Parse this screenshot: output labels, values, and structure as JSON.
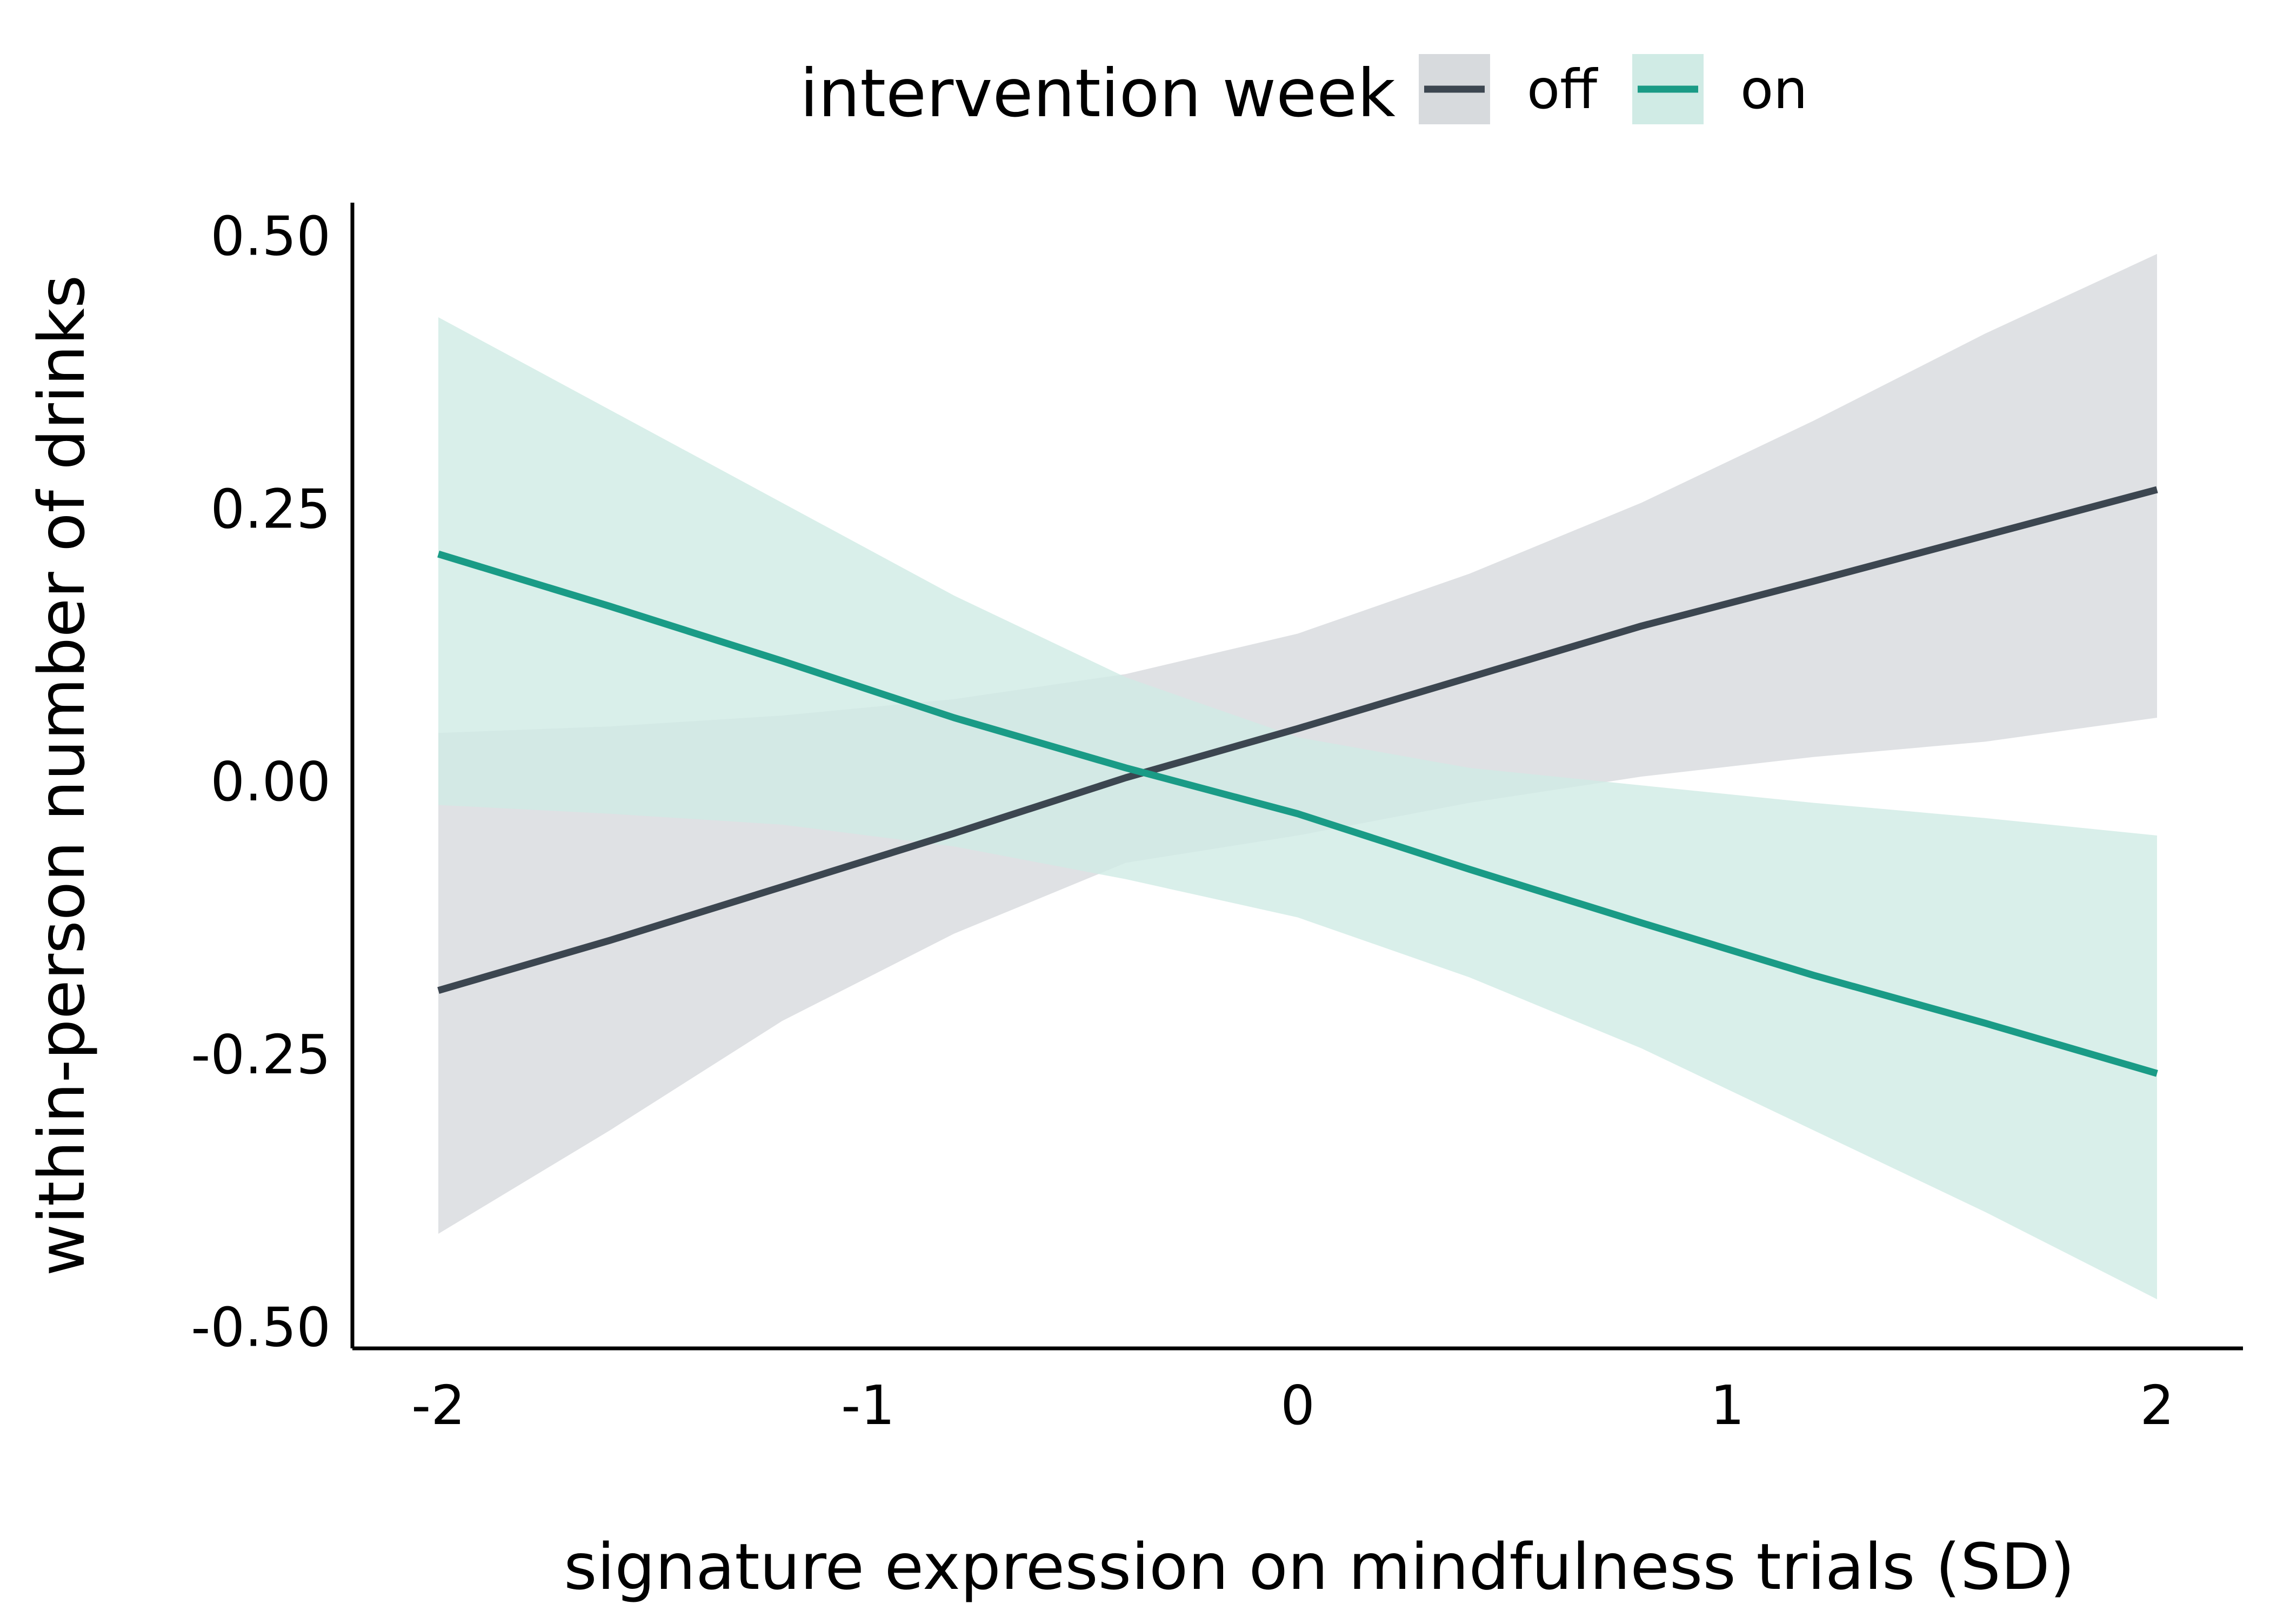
{
  "chart_data": {
    "type": "line",
    "xlabel": "signature expression on mindfulness trials (SD)",
    "ylabel": "within-person number of drinks",
    "xlim": [
      -2.2,
      2.2
    ],
    "ylim": [
      -0.52,
      0.53
    ],
    "x_ticks": [
      -2,
      -1,
      0,
      1,
      2
    ],
    "x_tick_labels": [
      "-2",
      "-1",
      "0",
      "1",
      "2"
    ],
    "y_ticks": [
      -0.5,
      -0.25,
      0,
      0.25,
      0.5
    ],
    "y_tick_labels": [
      "-0.50",
      "-0.25",
      "0.00",
      "0.25",
      "0.50"
    ],
    "grid": false,
    "legend": {
      "title": "intervention week",
      "position": "top"
    },
    "series": [
      {
        "name": "off",
        "color": "#3c4650",
        "band_color": "#d7dadd",
        "x": [
          -2,
          -1.6,
          -1.2,
          -0.8,
          -0.4,
          0,
          0.4,
          0.8,
          1.2,
          1.6,
          2
        ],
        "y": [
          -0.192,
          -0.146,
          -0.097,
          -0.048,
          0.003,
          0.048,
          0.095,
          0.142,
          0.183,
          0.225,
          0.267
        ],
        "lower": [
          -0.415,
          -0.32,
          -0.22,
          -0.14,
          -0.075,
          -0.05,
          -0.02,
          0.004,
          0.022,
          0.036,
          0.058
        ],
        "upper": [
          0.044,
          0.05,
          0.06,
          0.075,
          0.098,
          0.135,
          0.19,
          0.255,
          0.33,
          0.41,
          0.483
        ]
      },
      {
        "name": "on",
        "color": "#1a9b86",
        "band_color": "#d0ebe5",
        "x": [
          -2,
          -1.6,
          -1.2,
          -0.8,
          -0.4,
          0,
          0.4,
          0.8,
          1.2,
          1.6,
          2
        ],
        "y": [
          0.208,
          0.16,
          0.11,
          0.058,
          0.012,
          -0.03,
          -0.081,
          -0.13,
          -0.178,
          -0.222,
          -0.268
        ],
        "lower": [
          -0.022,
          -0.03,
          -0.04,
          -0.06,
          -0.09,
          -0.125,
          -0.18,
          -0.245,
          -0.32,
          -0.395,
          -0.475
        ],
        "upper": [
          0.425,
          0.34,
          0.255,
          0.17,
          0.095,
          0.04,
          0.012,
          -0.004,
          -0.02,
          -0.034,
          -0.05
        ]
      }
    ]
  }
}
